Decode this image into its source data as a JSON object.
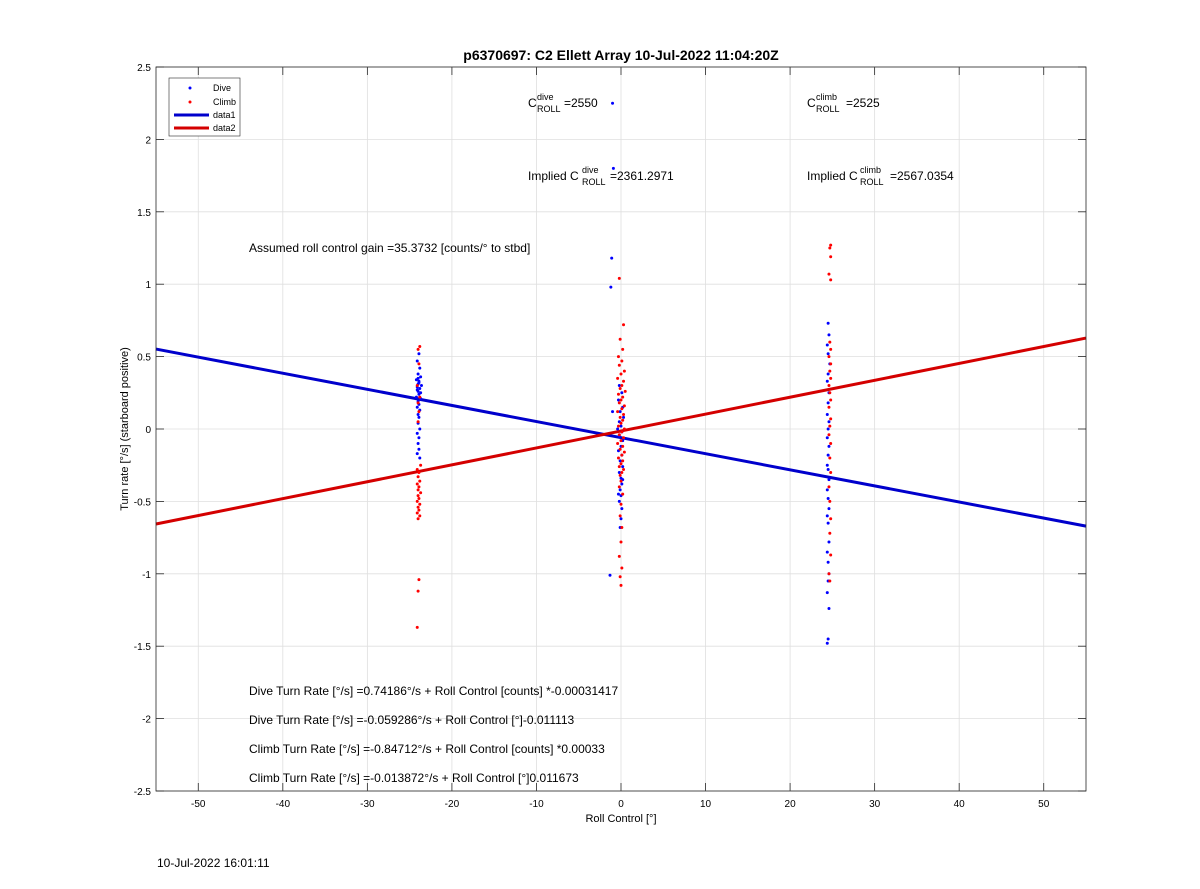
{
  "chart_data": {
    "type": "scatter",
    "title": "p6370697: C2 Ellett Array 10-Jul-2022 11:04:20Z",
    "xlabel": "Roll Control [°]",
    "ylabel": "Turn rate [°/s] (starboard positive)",
    "xlim": [
      -55,
      55
    ],
    "ylim": [
      -2.5,
      2.5
    ],
    "xticks": [
      -50,
      -40,
      -30,
      -20,
      -10,
      0,
      10,
      20,
      30,
      40,
      50
    ],
    "yticks": [
      -2.5,
      -2,
      -1.5,
      -1,
      -0.5,
      0,
      0.5,
      1,
      1.5,
      2,
      2.5
    ],
    "xtick_labels": [
      "-50",
      "-40",
      "-30",
      "-20",
      "-10",
      "0",
      "10",
      "20",
      "30",
      "40",
      "50"
    ],
    "ytick_labels": [
      "-2.5",
      "-2",
      "-1.5",
      "-1",
      "-0.5",
      "0",
      "0.5",
      "1",
      "1.5",
      "2",
      "2.5"
    ],
    "grid": true,
    "legend_position": "top-left",
    "legend": [
      {
        "label": "Dive",
        "kind": "marker",
        "color": "#0000ff"
      },
      {
        "label": "Climb",
        "kind": "marker",
        "color": "#ff0000"
      },
      {
        "label": "data1",
        "kind": "line",
        "color": "#0000cc"
      },
      {
        "label": "data2",
        "kind": "line",
        "color": "#d40000"
      }
    ],
    "series": [
      {
        "name": "Dive",
        "kind": "scatter",
        "color": "#0000ff",
        "points": [
          [
            -23.9,
            0.52
          ],
          [
            -24.1,
            0.47
          ],
          [
            -23.8,
            0.42
          ],
          [
            -24.0,
            0.38
          ],
          [
            -23.7,
            0.36
          ],
          [
            -24.2,
            0.34
          ],
          [
            -23.9,
            0.33
          ],
          [
            -24.0,
            0.31
          ],
          [
            -23.6,
            0.3
          ],
          [
            -24.1,
            0.29
          ],
          [
            -23.8,
            0.28
          ],
          [
            -24.0,
            0.26
          ],
          [
            -23.9,
            0.24
          ],
          [
            -24.2,
            0.22
          ],
          [
            -23.7,
            0.21
          ],
          [
            -24.0,
            0.19
          ],
          [
            -23.9,
            0.17
          ],
          [
            -24.1,
            0.15
          ],
          [
            -23.8,
            0.13
          ],
          [
            -24.0,
            0.1
          ],
          [
            -23.9,
            0.08
          ],
          [
            -24.0,
            0.04
          ],
          [
            -23.8,
            0.0
          ],
          [
            -24.1,
            -0.03
          ],
          [
            -23.9,
            -0.06
          ],
          [
            -24.0,
            -0.1
          ],
          [
            -23.9,
            -0.14
          ],
          [
            -24.1,
            -0.17
          ],
          [
            -23.8,
            -0.2
          ],
          [
            -24.0,
            0.35
          ],
          [
            -23.9,
            0.32
          ],
          [
            -24.1,
            0.27
          ],
          [
            -23.7,
            0.25
          ],
          [
            -1.0,
            2.25
          ],
          [
            -0.9,
            1.8
          ],
          [
            -1.1,
            1.18
          ],
          [
            -1.2,
            0.98
          ],
          [
            -1.0,
            0.12
          ],
          [
            -1.3,
            -1.01
          ],
          [
            -0.2,
            0.3
          ],
          [
            0.1,
            0.25
          ],
          [
            -0.3,
            0.2
          ],
          [
            0.2,
            0.15
          ],
          [
            -0.1,
            0.12
          ],
          [
            0.3,
            0.08
          ],
          [
            -0.2,
            0.05
          ],
          [
            0.0,
            0.02
          ],
          [
            -0.4,
            0.0
          ],
          [
            0.1,
            -0.02
          ],
          [
            -0.2,
            -0.05
          ],
          [
            0.2,
            -0.08
          ],
          [
            0.0,
            -0.12
          ],
          [
            -0.3,
            -0.15
          ],
          [
            0.1,
            -0.18
          ],
          [
            -0.1,
            -0.22
          ],
          [
            0.2,
            -0.26
          ],
          [
            -0.2,
            -0.3
          ],
          [
            0.0,
            -0.34
          ],
          [
            0.1,
            -0.38
          ],
          [
            -0.1,
            -0.42
          ],
          [
            0.0,
            -0.46
          ],
          [
            -0.2,
            -0.5
          ],
          [
            0.1,
            -0.55
          ],
          [
            0.0,
            -0.62
          ],
          [
            -0.1,
            -0.68
          ],
          [
            0.2,
            -0.35
          ],
          [
            -0.3,
            -0.45
          ],
          [
            24.5,
            0.73
          ],
          [
            24.6,
            0.65
          ],
          [
            24.4,
            0.58
          ],
          [
            24.5,
            0.52
          ],
          [
            24.7,
            0.45
          ],
          [
            24.5,
            0.38
          ],
          [
            24.4,
            0.33
          ],
          [
            24.6,
            0.25
          ],
          [
            24.5,
            0.18
          ],
          [
            24.4,
            0.1
          ],
          [
            24.6,
            0.05
          ],
          [
            24.5,
            0.0
          ],
          [
            24.4,
            -0.06
          ],
          [
            24.6,
            -0.12
          ],
          [
            24.5,
            -0.18
          ],
          [
            24.4,
            -0.25
          ],
          [
            24.5,
            -0.28
          ],
          [
            24.6,
            -0.35
          ],
          [
            24.4,
            -0.42
          ],
          [
            24.5,
            -0.48
          ],
          [
            24.6,
            -0.55
          ],
          [
            24.4,
            -0.6
          ],
          [
            24.5,
            -0.65
          ],
          [
            24.6,
            -0.78
          ],
          [
            24.4,
            -0.85
          ],
          [
            24.5,
            -0.92
          ],
          [
            24.6,
            -1.0
          ],
          [
            24.5,
            -1.05
          ],
          [
            24.4,
            -1.13
          ],
          [
            24.6,
            -1.24
          ],
          [
            24.5,
            -1.45
          ],
          [
            24.4,
            -1.48
          ]
        ]
      },
      {
        "name": "Climb",
        "kind": "scatter",
        "color": "#ff0000",
        "points": [
          [
            -23.8,
            0.57
          ],
          [
            -24.0,
            0.55
          ],
          [
            -23.9,
            0.45
          ],
          [
            -24.1,
            0.3
          ],
          [
            -23.8,
            0.22
          ],
          [
            -24.0,
            0.18
          ],
          [
            -23.9,
            0.12
          ],
          [
            -24.0,
            0.05
          ],
          [
            -23.7,
            -0.25
          ],
          [
            -24.1,
            -0.28
          ],
          [
            -23.9,
            -0.3
          ],
          [
            -24.0,
            -0.33
          ],
          [
            -23.8,
            -0.36
          ],
          [
            -24.1,
            -0.38
          ],
          [
            -23.9,
            -0.4
          ],
          [
            -24.0,
            -0.42
          ],
          [
            -23.7,
            -0.44
          ],
          [
            -24.0,
            -0.46
          ],
          [
            -23.9,
            -0.48
          ],
          [
            -24.1,
            -0.5
          ],
          [
            -23.8,
            -0.52
          ],
          [
            -24.0,
            -0.54
          ],
          [
            -23.9,
            -0.56
          ],
          [
            -24.1,
            -0.58
          ],
          [
            -23.8,
            -0.6
          ],
          [
            -24.0,
            -0.62
          ],
          [
            -23.9,
            -1.04
          ],
          [
            -24.0,
            -1.12
          ],
          [
            -24.1,
            -1.37
          ],
          [
            -0.2,
            1.04
          ],
          [
            0.3,
            0.72
          ],
          [
            -0.1,
            0.62
          ],
          [
            0.2,
            0.55
          ],
          [
            -0.3,
            0.5
          ],
          [
            0.1,
            0.47
          ],
          [
            -0.2,
            0.44
          ],
          [
            0.4,
            0.4
          ],
          [
            0.0,
            0.38
          ],
          [
            -0.4,
            0.35
          ],
          [
            0.3,
            0.33
          ],
          [
            0.1,
            0.3
          ],
          [
            -0.1,
            0.28
          ],
          [
            0.5,
            0.26
          ],
          [
            -0.3,
            0.24
          ],
          [
            0.2,
            0.22
          ],
          [
            0.0,
            0.2
          ],
          [
            -0.2,
            0.18
          ],
          [
            0.4,
            0.16
          ],
          [
            0.1,
            0.14
          ],
          [
            -0.4,
            0.12
          ],
          [
            0.3,
            0.1
          ],
          [
            -0.1,
            0.08
          ],
          [
            0.2,
            0.06
          ],
          [
            0.0,
            0.04
          ],
          [
            -0.3,
            0.02
          ],
          [
            0.4,
            0.0
          ],
          [
            0.1,
            -0.02
          ],
          [
            -0.2,
            -0.04
          ],
          [
            0.3,
            -0.06
          ],
          [
            0.0,
            -0.08
          ],
          [
            -0.4,
            -0.1
          ],
          [
            0.2,
            -0.12
          ],
          [
            -0.1,
            -0.14
          ],
          [
            0.4,
            -0.16
          ],
          [
            0.1,
            -0.18
          ],
          [
            -0.3,
            -0.2
          ],
          [
            0.2,
            -0.22
          ],
          [
            0.0,
            -0.24
          ],
          [
            -0.2,
            -0.26
          ],
          [
            0.3,
            -0.28
          ],
          [
            0.1,
            -0.3
          ],
          [
            -0.1,
            -0.32
          ],
          [
            0.0,
            -0.36
          ],
          [
            -0.2,
            -0.4
          ],
          [
            0.2,
            -0.45
          ],
          [
            0.0,
            -0.52
          ],
          [
            -0.1,
            -0.6
          ],
          [
            0.1,
            -0.68
          ],
          [
            0.0,
            -0.78
          ],
          [
            -0.2,
            -0.88
          ],
          [
            0.1,
            -0.96
          ],
          [
            -0.1,
            -1.02
          ],
          [
            0.0,
            -1.08
          ],
          [
            24.8,
            1.27
          ],
          [
            24.7,
            1.25
          ],
          [
            24.8,
            1.19
          ],
          [
            24.6,
            1.07
          ],
          [
            24.8,
            1.03
          ],
          [
            24.7,
            0.6
          ],
          [
            24.8,
            0.55
          ],
          [
            24.6,
            0.5
          ],
          [
            24.8,
            0.45
          ],
          [
            24.7,
            0.4
          ],
          [
            24.8,
            0.35
          ],
          [
            24.6,
            0.3
          ],
          [
            24.7,
            0.25
          ],
          [
            24.8,
            0.2
          ],
          [
            24.6,
            0.15
          ],
          [
            24.8,
            0.07
          ],
          [
            24.7,
            0.02
          ],
          [
            24.6,
            -0.04
          ],
          [
            24.8,
            -0.1
          ],
          [
            24.7,
            -0.2
          ],
          [
            24.8,
            -0.3
          ],
          [
            24.6,
            -0.4
          ],
          [
            24.7,
            -0.5
          ],
          [
            24.8,
            -0.62
          ],
          [
            24.7,
            -0.72
          ],
          [
            24.8,
            -0.87
          ],
          [
            24.6,
            -1.0
          ],
          [
            24.7,
            -1.05
          ]
        ]
      },
      {
        "name": "data1",
        "kind": "line",
        "color": "#0000cc",
        "x": [
          -55,
          55
        ],
        "y": [
          0.552,
          -0.671
        ]
      },
      {
        "name": "data2",
        "kind": "line",
        "color": "#d40000",
        "x": [
          -55,
          55
        ],
        "y": [
          -0.656,
          0.628
        ]
      }
    ],
    "annotations": {
      "c_roll_dive": {
        "prefix": "C",
        "sup": "dive",
        "sub": "ROLL",
        "value": "=2550"
      },
      "c_roll_climb": {
        "prefix": "C",
        "sup": "climb",
        "sub": "ROLL",
        "value": "=2525"
      },
      "implied_dive": {
        "prefix": "Implied C",
        "sup": "dive",
        "sub": "ROLL",
        "value": "=2361.2971"
      },
      "implied_climb": {
        "prefix": "Implied C",
        "sup": "climb",
        "sub": "ROLL",
        "value": "=2567.0354"
      },
      "gain": "Assumed roll control gain =35.3732 [counts/° to stbd]",
      "eq1": "Dive Turn Rate [°/s] =0.74186°/s + Roll Control [counts] *-0.00031417",
      "eq2": "Dive Turn Rate [°/s] =-0.059286°/s + Roll Control [°]-0.011113",
      "eq3": "Climb Turn Rate [°/s] =-0.84712°/s + Roll Control [counts] *0.00033",
      "eq4": "Climb Turn Rate [°/s] =-0.013872°/s + Roll Control [°]0.011673"
    }
  },
  "footer": {
    "timestamp": "10-Jul-2022 16:01:11"
  }
}
